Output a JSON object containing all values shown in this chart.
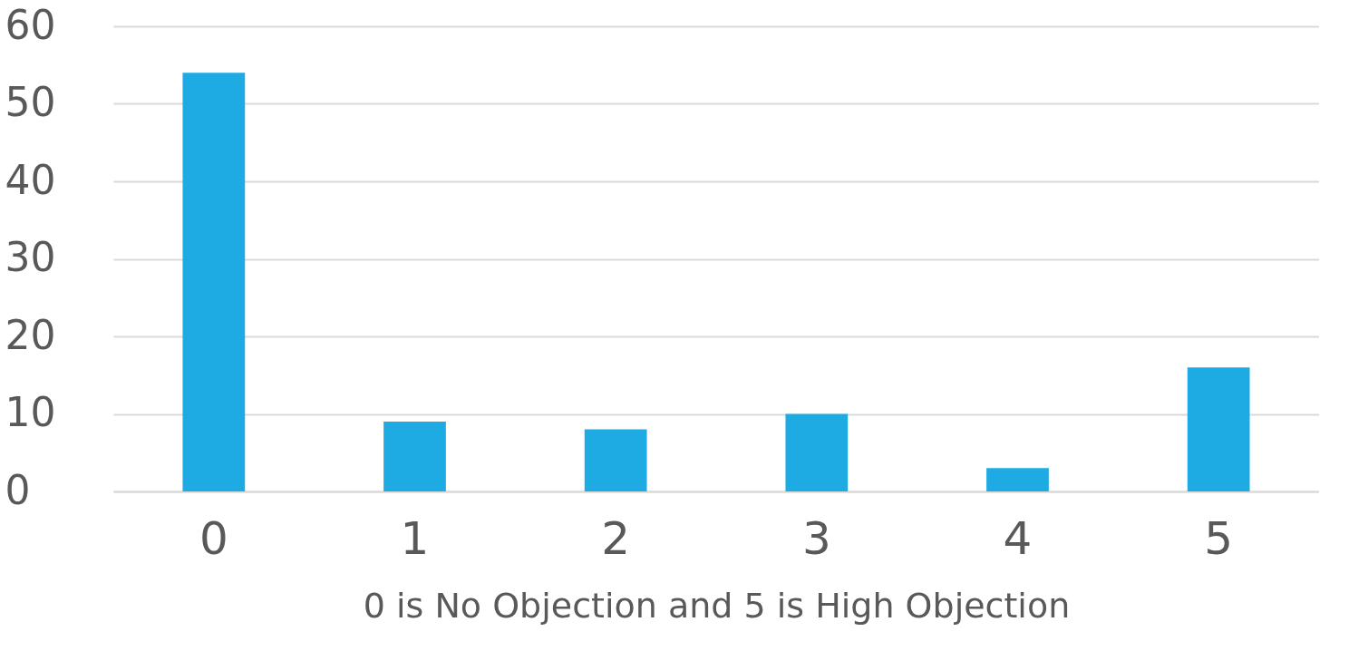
{
  "chart_data": {
    "type": "bar",
    "xlabel": "0 is No Objection and 5 is High Objection",
    "categories": [
      "0",
      "1",
      "2",
      "3",
      "4",
      "5"
    ],
    "values": [
      54,
      9,
      8,
      10,
      3,
      16
    ],
    "color": "#1eabe3",
    "ylim": [
      0,
      60
    ],
    "yticks": [
      0,
      10,
      20,
      30,
      40,
      50,
      60
    ],
    "grid": "y"
  }
}
